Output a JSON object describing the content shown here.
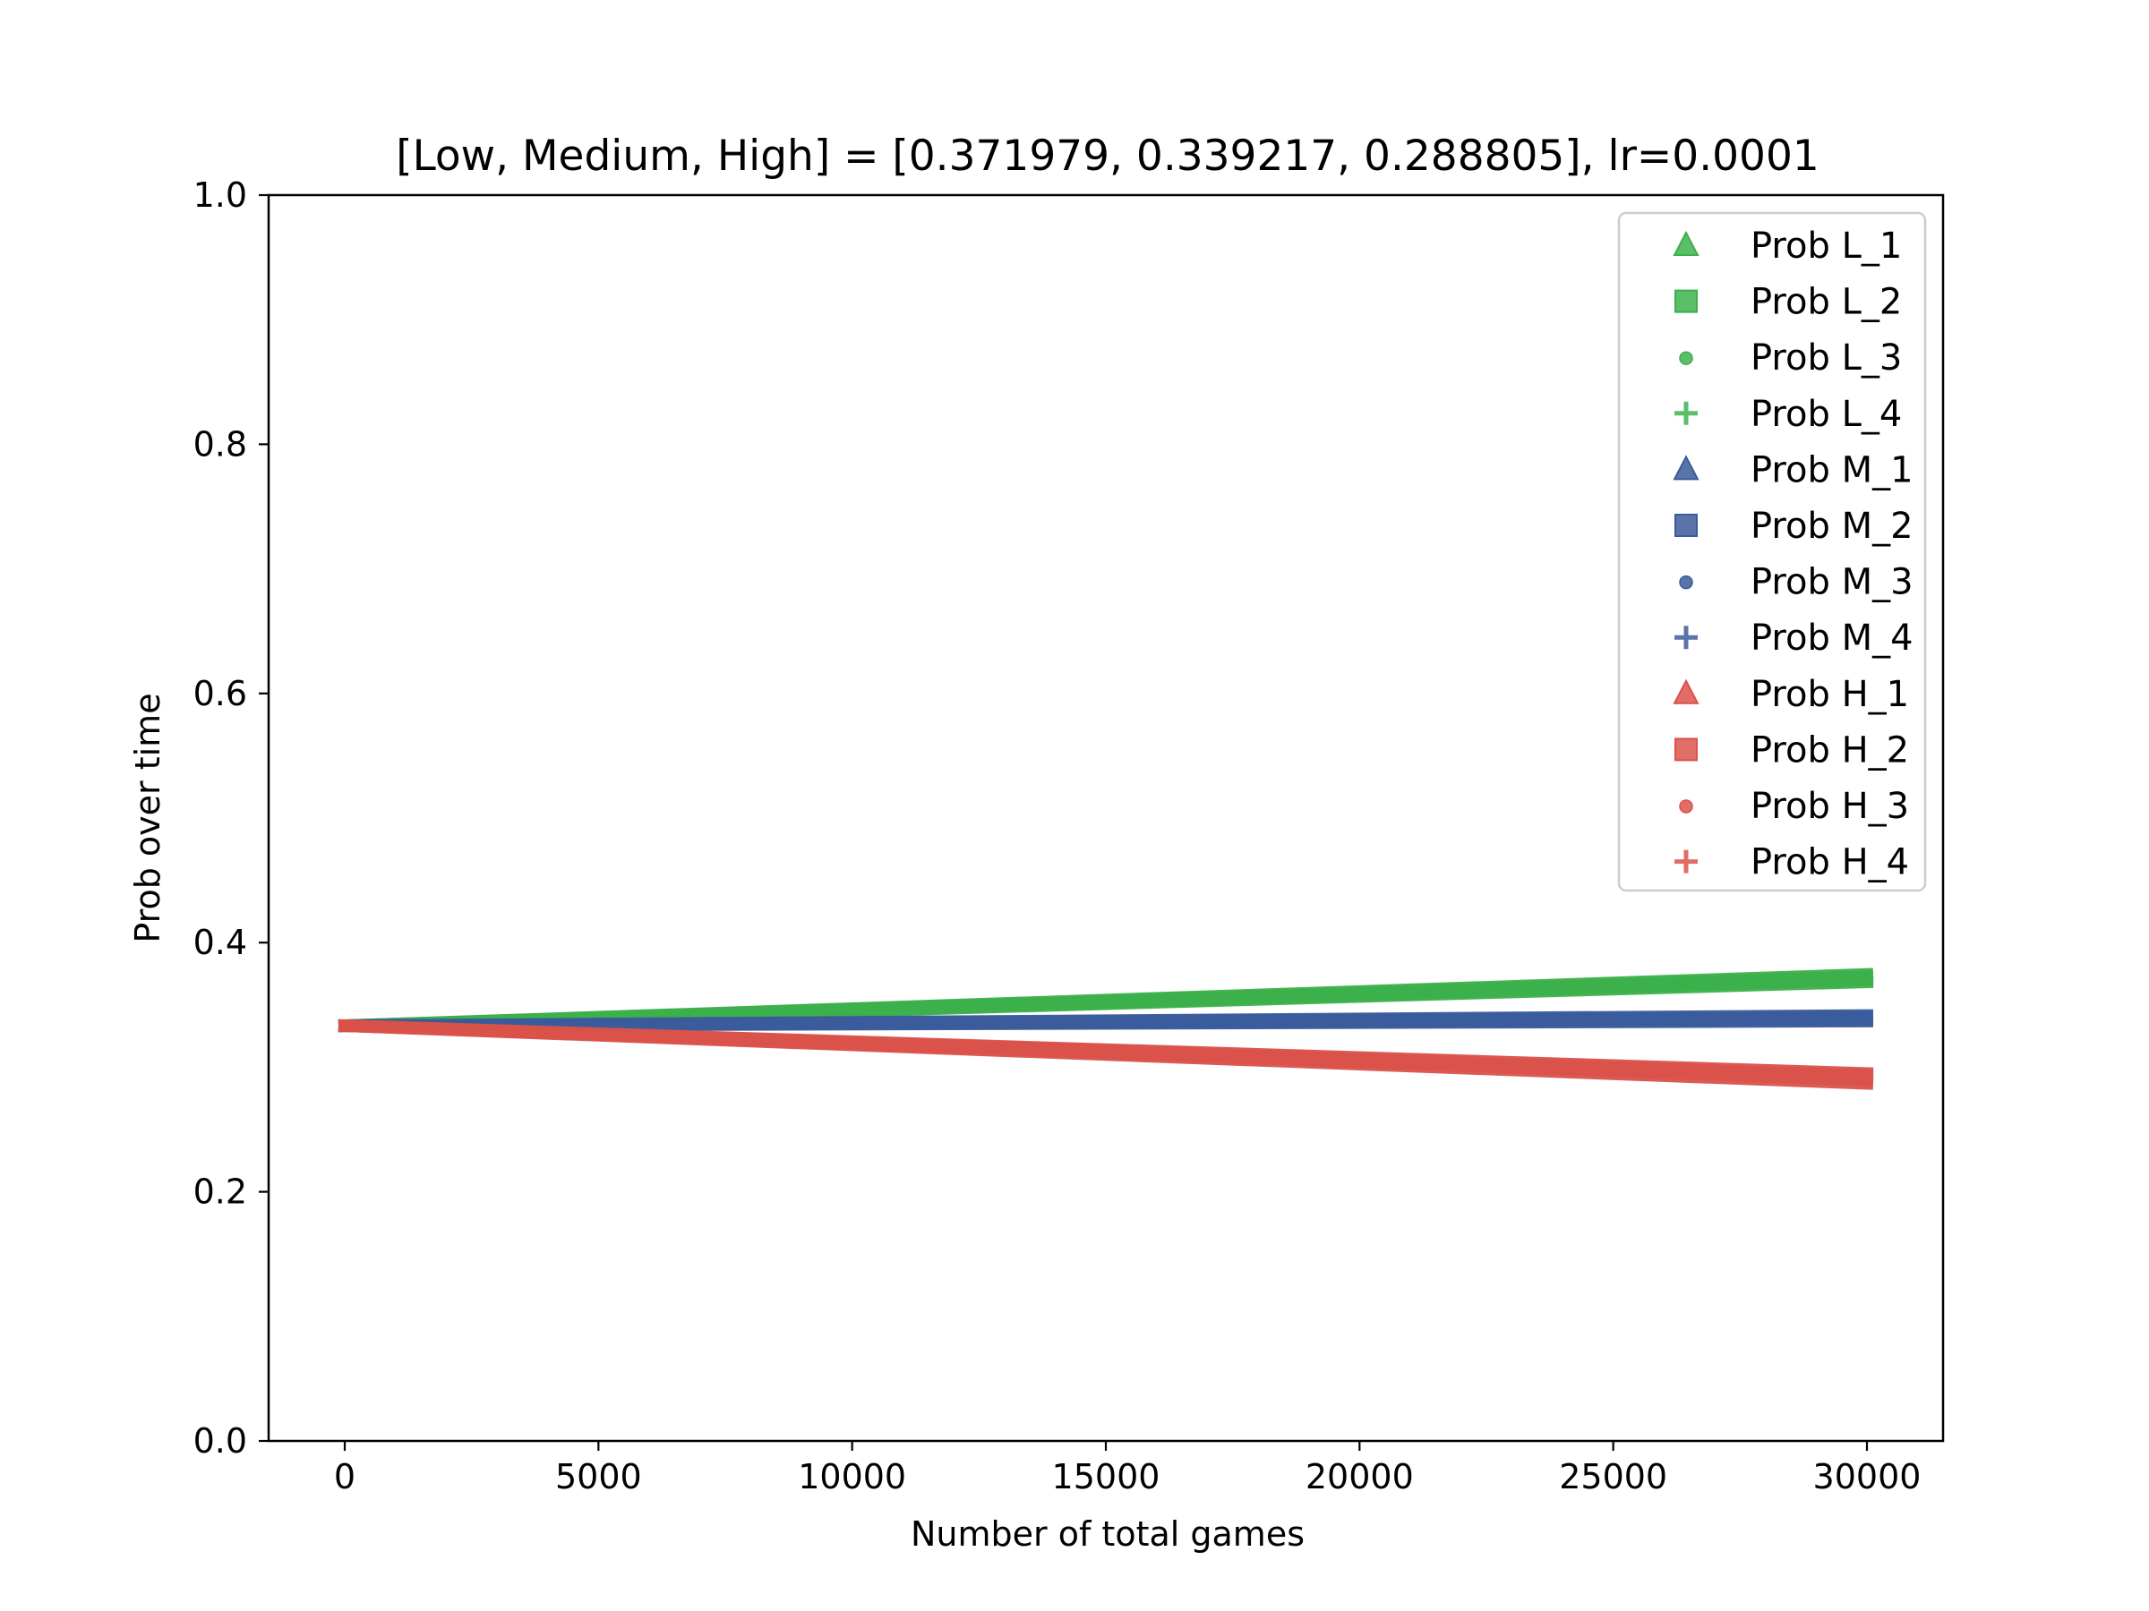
{
  "chart_data": {
    "type": "scatter",
    "title": "[Low, Medium, High] = [0.371979, 0.339217, 0.288805], lr=0.0001",
    "xlabel": "Number of total games",
    "ylabel": "Prob over time",
    "xlim": [
      -1500,
      31500
    ],
    "ylim": [
      0.0,
      1.0
    ],
    "xticks": [
      0,
      5000,
      10000,
      15000,
      20000,
      25000,
      30000
    ],
    "yticks": [
      0.0,
      0.2,
      0.4,
      0.6,
      0.8,
      1.0
    ],
    "xtick_labels": [
      "0",
      "5000",
      "10000",
      "15000",
      "20000",
      "25000",
      "30000"
    ],
    "ytick_labels": [
      "0.0",
      "0.2",
      "0.4",
      "0.6",
      "0.8",
      "1.0"
    ],
    "grid": false,
    "legend_position": "top-right",
    "series": [
      {
        "name": "Prob L_1",
        "marker": "triangle",
        "color": "#3cb04a",
        "start": 0.3333,
        "end": 0.3745
      },
      {
        "name": "Prob L_2",
        "marker": "square",
        "color": "#3cb04a",
        "start": 0.3333,
        "end": 0.3725
      },
      {
        "name": "Prob L_3",
        "marker": "circle",
        "color": "#3cb04a",
        "start": 0.3333,
        "end": 0.3705
      },
      {
        "name": "Prob L_4",
        "marker": "plus",
        "color": "#3cb04a",
        "start": 0.3333,
        "end": 0.3685
      },
      {
        "name": "Prob M_1",
        "marker": "triangle",
        "color": "#3a5b9c",
        "start": 0.3333,
        "end": 0.3415
      },
      {
        "name": "Prob M_2",
        "marker": "square",
        "color": "#3a5b9c",
        "start": 0.3333,
        "end": 0.34
      },
      {
        "name": "Prob M_3",
        "marker": "circle",
        "color": "#3a5b9c",
        "start": 0.3333,
        "end": 0.3385
      },
      {
        "name": "Prob M_4",
        "marker": "plus",
        "color": "#3a5b9c",
        "start": 0.3333,
        "end": 0.337
      },
      {
        "name": "Prob H_1",
        "marker": "triangle",
        "color": "#da524a",
        "start": 0.3333,
        "end": 0.295
      },
      {
        "name": "Prob H_2",
        "marker": "square",
        "color": "#da524a",
        "start": 0.3333,
        "end": 0.293
      },
      {
        "name": "Prob H_3",
        "marker": "circle",
        "color": "#da524a",
        "start": 0.3333,
        "end": 0.29
      },
      {
        "name": "Prob H_4",
        "marker": "plus",
        "color": "#da524a",
        "start": 0.3333,
        "end": 0.287
      }
    ],
    "x_start": 0,
    "x_end": 30000
  },
  "legend_colors": {
    "L": "#5bbf69",
    "M": "#5a74a8",
    "H": "#e06e67"
  }
}
